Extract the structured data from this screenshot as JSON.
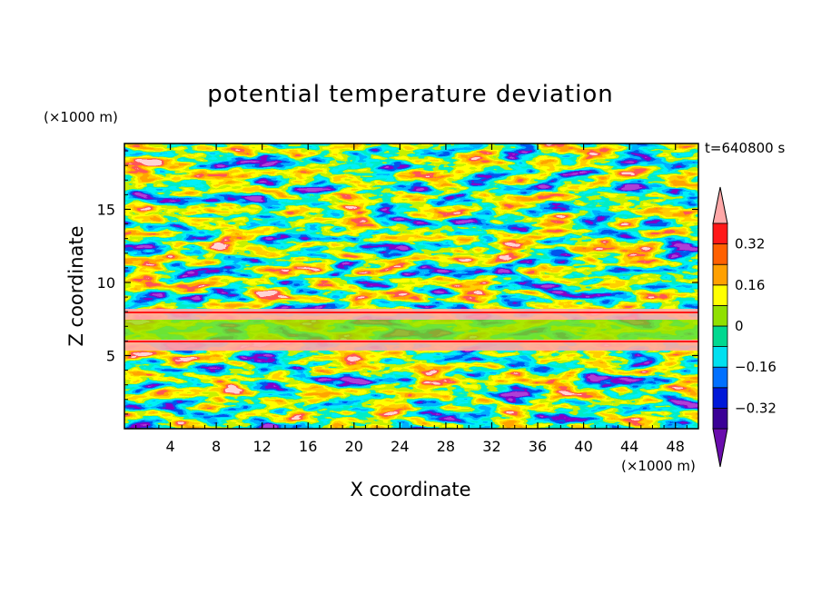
{
  "chart_data": {
    "type": "heatmap",
    "title": "potential temperature deviation",
    "xlabel": "X coordinate",
    "ylabel": "Z coordinate",
    "x_unit": "(×1000 m)",
    "y_unit": "(×1000 m)",
    "time_label": "t=640800 s",
    "xlim": [
      0,
      50
    ],
    "ylim": [
      0,
      19.5
    ],
    "x_ticks": [
      "4",
      "8",
      "12",
      "16",
      "20",
      "24",
      "28",
      "32",
      "36",
      "40",
      "44",
      "48"
    ],
    "y_ticks": [
      "5",
      "10",
      "15"
    ],
    "colorbar": {
      "levels": [
        -0.4,
        -0.32,
        -0.24,
        -0.16,
        -0.08,
        0,
        0.08,
        0.16,
        0.24,
        0.32,
        0.4
      ],
      "labels": [
        "0.32",
        "0.24",
        "0.16",
        "0.08",
        "0",
        "-0.08",
        "-0.16",
        "-0.24",
        "-0.32"
      ],
      "label_shown": [
        true,
        false,
        true,
        false,
        true,
        false,
        true,
        false,
        true
      ],
      "colors": [
        "#6a0dad",
        "#3a0096",
        "#0018d8",
        "#0070ff",
        "#00e0f0",
        "#00d890",
        "#90e000",
        "#ffff00",
        "#ffa000",
        "#ff6000",
        "#ff1818",
        "#ffa8a8"
      ]
    }
  }
}
